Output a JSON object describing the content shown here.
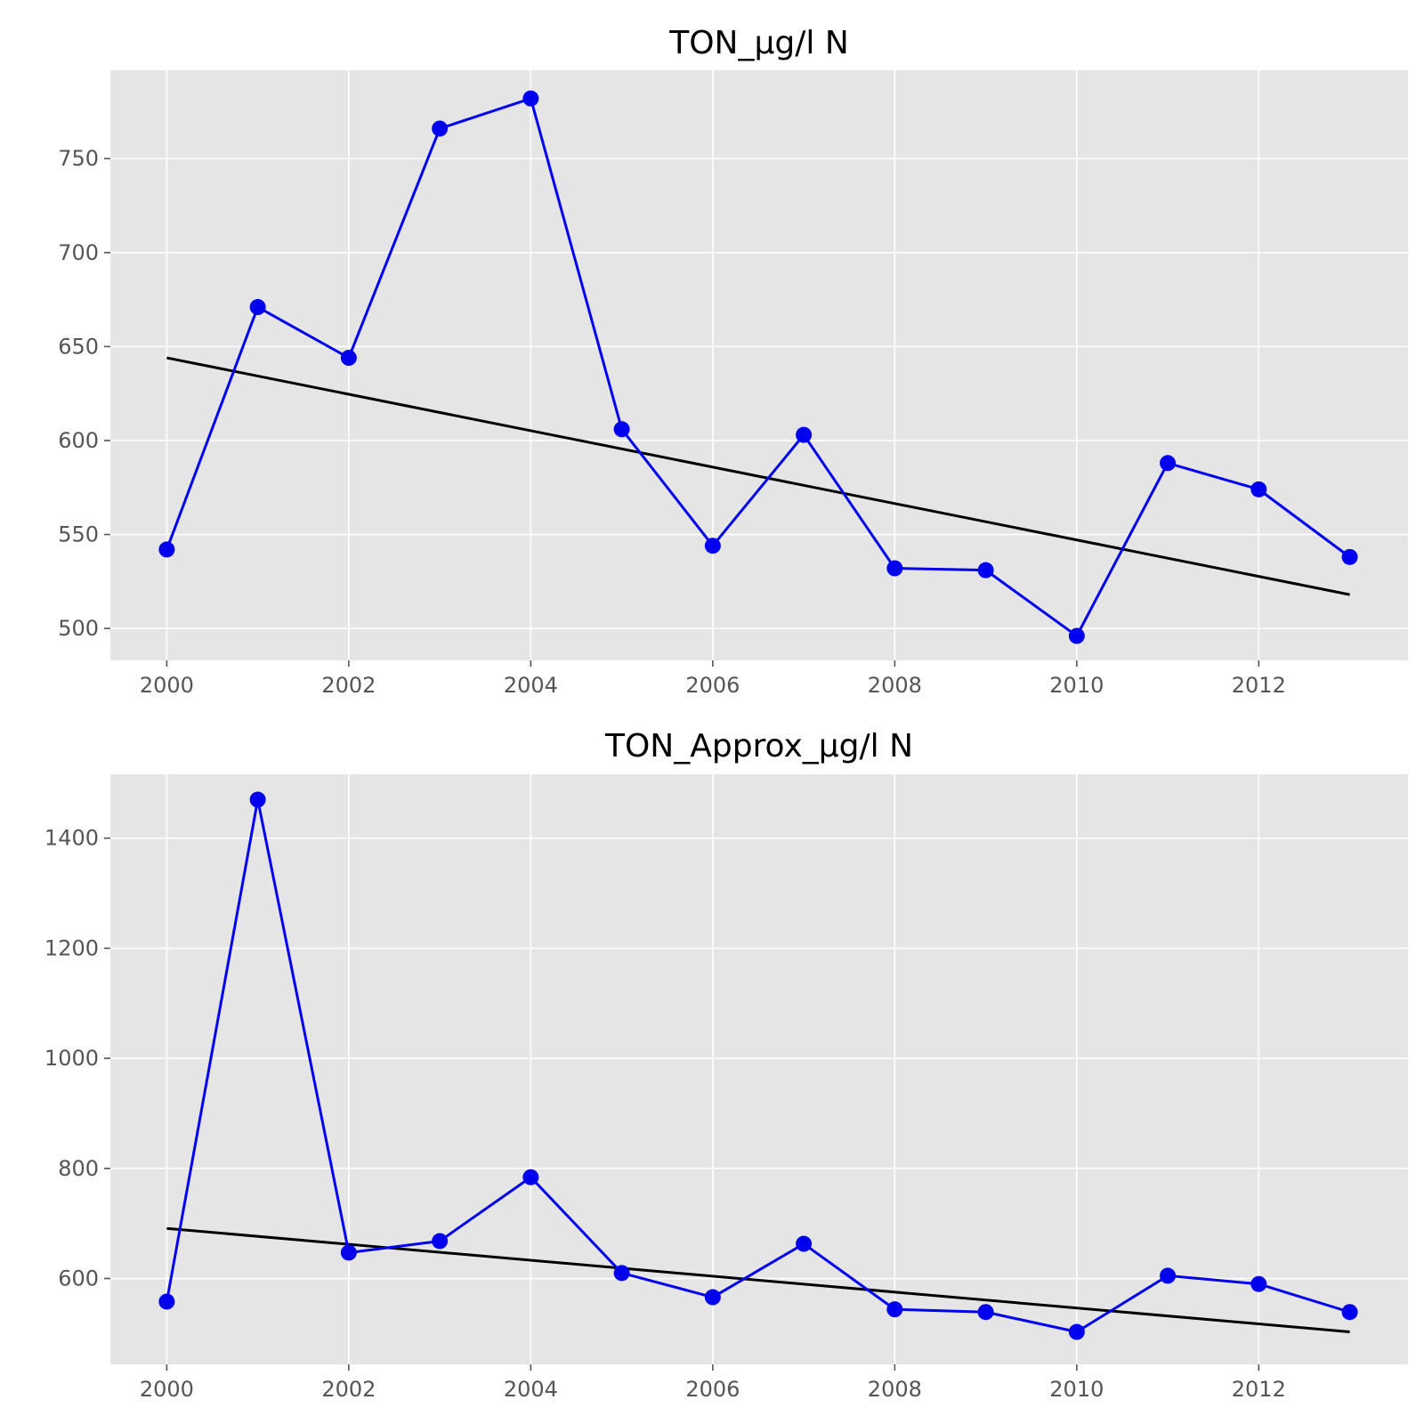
{
  "chart_data": [
    {
      "type": "line",
      "title": "TON_µg/l N",
      "xlabel": "",
      "ylabel": "",
      "grid": true,
      "x": [
        2000,
        2001,
        2002,
        2003,
        2004,
        2005,
        2006,
        2007,
        2008,
        2009,
        2010,
        2011,
        2012,
        2013
      ],
      "xlim": [
        1999.38,
        2013.64
      ],
      "ylim": [
        483,
        797
      ],
      "xticks": [
        "2000",
        "2002",
        "2004",
        "2006",
        "2008",
        "2010",
        "2012"
      ],
      "yticks": [
        "500",
        "550",
        "600",
        "650",
        "700",
        "750"
      ],
      "series": [
        {
          "kind": "data",
          "color": "#0000ee",
          "marker": "circle",
          "values": [
            542,
            671,
            644,
            766,
            782,
            606,
            544,
            603,
            532,
            531,
            496,
            588,
            574,
            538
          ]
        },
        {
          "kind": "trend",
          "color": "#000000",
          "x": [
            2000,
            2013
          ],
          "values": [
            644,
            518
          ]
        }
      ]
    },
    {
      "type": "line",
      "title": "TON_Approx_µg/l N",
      "xlabel": "",
      "ylabel": "",
      "grid": true,
      "x": [
        2000,
        2001,
        2002,
        2003,
        2004,
        2005,
        2006,
        2007,
        2008,
        2009,
        2010,
        2011,
        2012,
        2013
      ],
      "xlim": [
        1999.38,
        2013.64
      ],
      "ylim": [
        444,
        1516
      ],
      "xticks": [
        "2000",
        "2002",
        "2004",
        "2006",
        "2008",
        "2010",
        "2012"
      ],
      "yticks": [
        "600",
        "800",
        "1000",
        "1200",
        "1400"
      ],
      "series": [
        {
          "kind": "data",
          "color": "#0000ee",
          "marker": "circle",
          "values": [
            558,
            1470,
            647,
            668,
            784,
            610,
            566,
            663,
            544,
            539,
            503,
            605,
            590,
            539
          ]
        },
        {
          "kind": "trend",
          "color": "#000000",
          "x": [
            2000,
            2013
          ],
          "values": [
            691,
            503
          ]
        }
      ]
    }
  ]
}
